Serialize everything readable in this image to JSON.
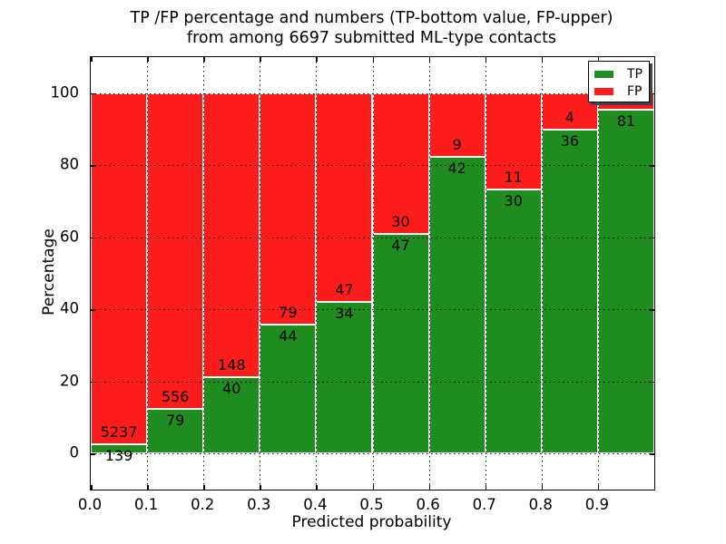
{
  "chart_data": {
    "type": "bar",
    "stacked": true,
    "title_lines": [
      "TP /FP percentage and numbers (TP-bottom value, FP-upper)",
      "from among 6697 submitted ML-type contacts"
    ],
    "xlabel": "Predicted probability",
    "ylabel": "Percentage",
    "xlim": [
      0.0,
      1.0
    ],
    "ylim": [
      -10,
      110
    ],
    "grid": "dotted",
    "legend_position": "upper right",
    "background_color": "#ffffff",
    "grid_color": "#000000",
    "bar_edge_color": "#ffffff",
    "total_submitted": 6697,
    "x_tick_labels": [
      "0.0",
      "0.1",
      "0.2",
      "0.3",
      "0.4",
      "0.5",
      "0.6",
      "0.7",
      "0.8",
      "0.9"
    ],
    "y_tick_values": [
      0,
      20,
      40,
      60,
      80,
      100
    ],
    "y_tick_labels": [
      "0",
      "20",
      "40",
      "60",
      "80",
      "100"
    ],
    "bin_width": 0.1,
    "series": [
      {
        "name": "TP",
        "color": "#1e8c1e"
      },
      {
        "name": "FP",
        "color": "#fc1c1c"
      }
    ],
    "bins": [
      {
        "x_start": 0.0,
        "tp_pct": 2.59,
        "fp_pct": 97.41,
        "tp_label": "139",
        "fp_label": "5237"
      },
      {
        "x_start": 0.1,
        "tp_pct": 12.44,
        "fp_pct": 87.56,
        "tp_label": "79",
        "fp_label": "556"
      },
      {
        "x_start": 0.2,
        "tp_pct": 21.28,
        "fp_pct": 78.72,
        "tp_label": "40",
        "fp_label": "148"
      },
      {
        "x_start": 0.3,
        "tp_pct": 35.77,
        "fp_pct": 64.23,
        "tp_label": "44",
        "fp_label": "79"
      },
      {
        "x_start": 0.4,
        "tp_pct": 41.98,
        "fp_pct": 58.02,
        "tp_label": "34",
        "fp_label": "47"
      },
      {
        "x_start": 0.5,
        "tp_pct": 61.04,
        "fp_pct": 38.96,
        "tp_label": "47",
        "fp_label": "30"
      },
      {
        "x_start": 0.6,
        "tp_pct": 82.35,
        "fp_pct": 17.65,
        "tp_label": "42",
        "fp_label": "9"
      },
      {
        "x_start": 0.7,
        "tp_pct": 73.17,
        "fp_pct": 26.83,
        "tp_label": "30",
        "fp_label": "11"
      },
      {
        "x_start": 0.8,
        "tp_pct": 90.0,
        "fp_pct": 10.0,
        "tp_label": "36",
        "fp_label": "4"
      },
      {
        "x_start": 0.9,
        "tp_pct": 95.29,
        "fp_pct": 4.71,
        "tp_label": "81",
        "fp_label": ""
      }
    ],
    "title_line1": "TP /FP percentage and numbers (TP-bottom value, FP-upper)",
    "title_line2": "from among 6697 submitted ML-type contacts"
  }
}
